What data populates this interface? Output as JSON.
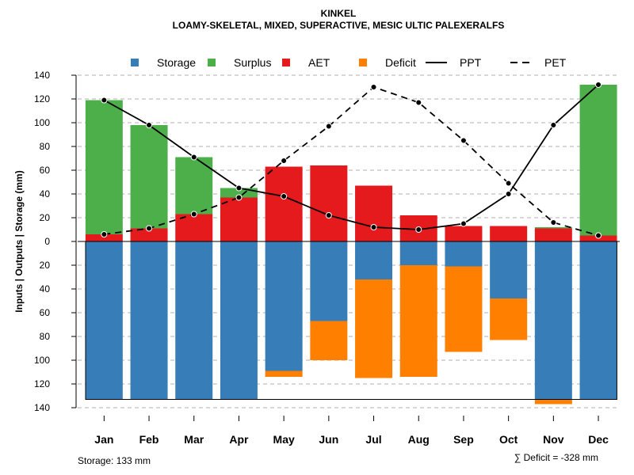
{
  "chart_data": {
    "type": "bar",
    "title": "KINKEL",
    "subtitle": "LOAMY-SKELETAL, MIXED, SUPERACTIVE, MESIC ULTIC PALEXERALFS",
    "ylabel": "Inputs | Outputs | Storage    (mm)",
    "categories": [
      "Jan",
      "Feb",
      "Mar",
      "Apr",
      "May",
      "Jun",
      "Jul",
      "Aug",
      "Sep",
      "Oct",
      "Nov",
      "Dec"
    ],
    "ylim": [
      -140,
      140
    ],
    "yticks": [
      140,
      120,
      100,
      80,
      60,
      40,
      20,
      0,
      -20,
      -40,
      -60,
      -80,
      -100,
      -120,
      -140
    ],
    "ytick_labels": [
      "140",
      "120",
      "100",
      "80",
      "60",
      "40",
      "20",
      "0",
      "20",
      "40",
      "60",
      "80",
      "100",
      "120",
      "140"
    ],
    "grid": true,
    "legend_position": "top",
    "colors": {
      "storage": "#377EB8",
      "surplus": "#4DAF4A",
      "aet": "#E41A1C",
      "deficit": "#FF7F00"
    },
    "legend": [
      {
        "key": "storage",
        "label": "Storage",
        "kind": "square",
        "color": "#377EB8"
      },
      {
        "key": "surplus",
        "label": "Surplus",
        "kind": "square",
        "color": "#4DAF4A"
      },
      {
        "key": "aet",
        "label": "AET",
        "kind": "square",
        "color": "#E41A1C"
      },
      {
        "key": "deficit",
        "label": "Deficit",
        "kind": "square",
        "color": "#FF7F00"
      },
      {
        "key": "ppt",
        "label": "PPT",
        "kind": "solid",
        "color": "#000000"
      },
      {
        "key": "pet",
        "label": "PET",
        "kind": "dashed",
        "color": "#000000"
      }
    ],
    "series": [
      {
        "name": "AET",
        "key": "aet",
        "values": [
          6,
          11,
          23,
          37,
          63,
          64,
          47,
          22,
          13,
          13,
          11,
          5
        ]
      },
      {
        "name": "Surplus",
        "key": "surplus",
        "values": [
          113,
          87,
          48,
          8,
          0,
          0,
          0,
          0,
          0,
          0,
          1,
          127
        ]
      },
      {
        "name": "Storage",
        "key": "storage",
        "values": [
          133,
          133,
          133,
          133,
          109,
          67,
          32,
          20,
          21,
          48,
          133,
          133
        ]
      },
      {
        "name": "Deficit",
        "key": "deficit",
        "values": [
          0,
          0,
          0,
          0,
          5,
          33,
          83,
          94,
          72,
          35,
          4,
          0
        ]
      },
      {
        "name": "PPT",
        "key": "ppt",
        "values": [
          119,
          98,
          71,
          45,
          38,
          22,
          12,
          10,
          15,
          40,
          98,
          132
        ]
      },
      {
        "name": "PET",
        "key": "pet",
        "values": [
          6,
          11,
          23,
          37,
          68,
          97,
          130,
          117,
          85,
          49,
          16,
          5
        ]
      }
    ],
    "storage_capacity": 133,
    "annotations": {
      "storage": "Storage: 133 mm",
      "deficit": "∑ Deficit = -328 mm"
    }
  }
}
